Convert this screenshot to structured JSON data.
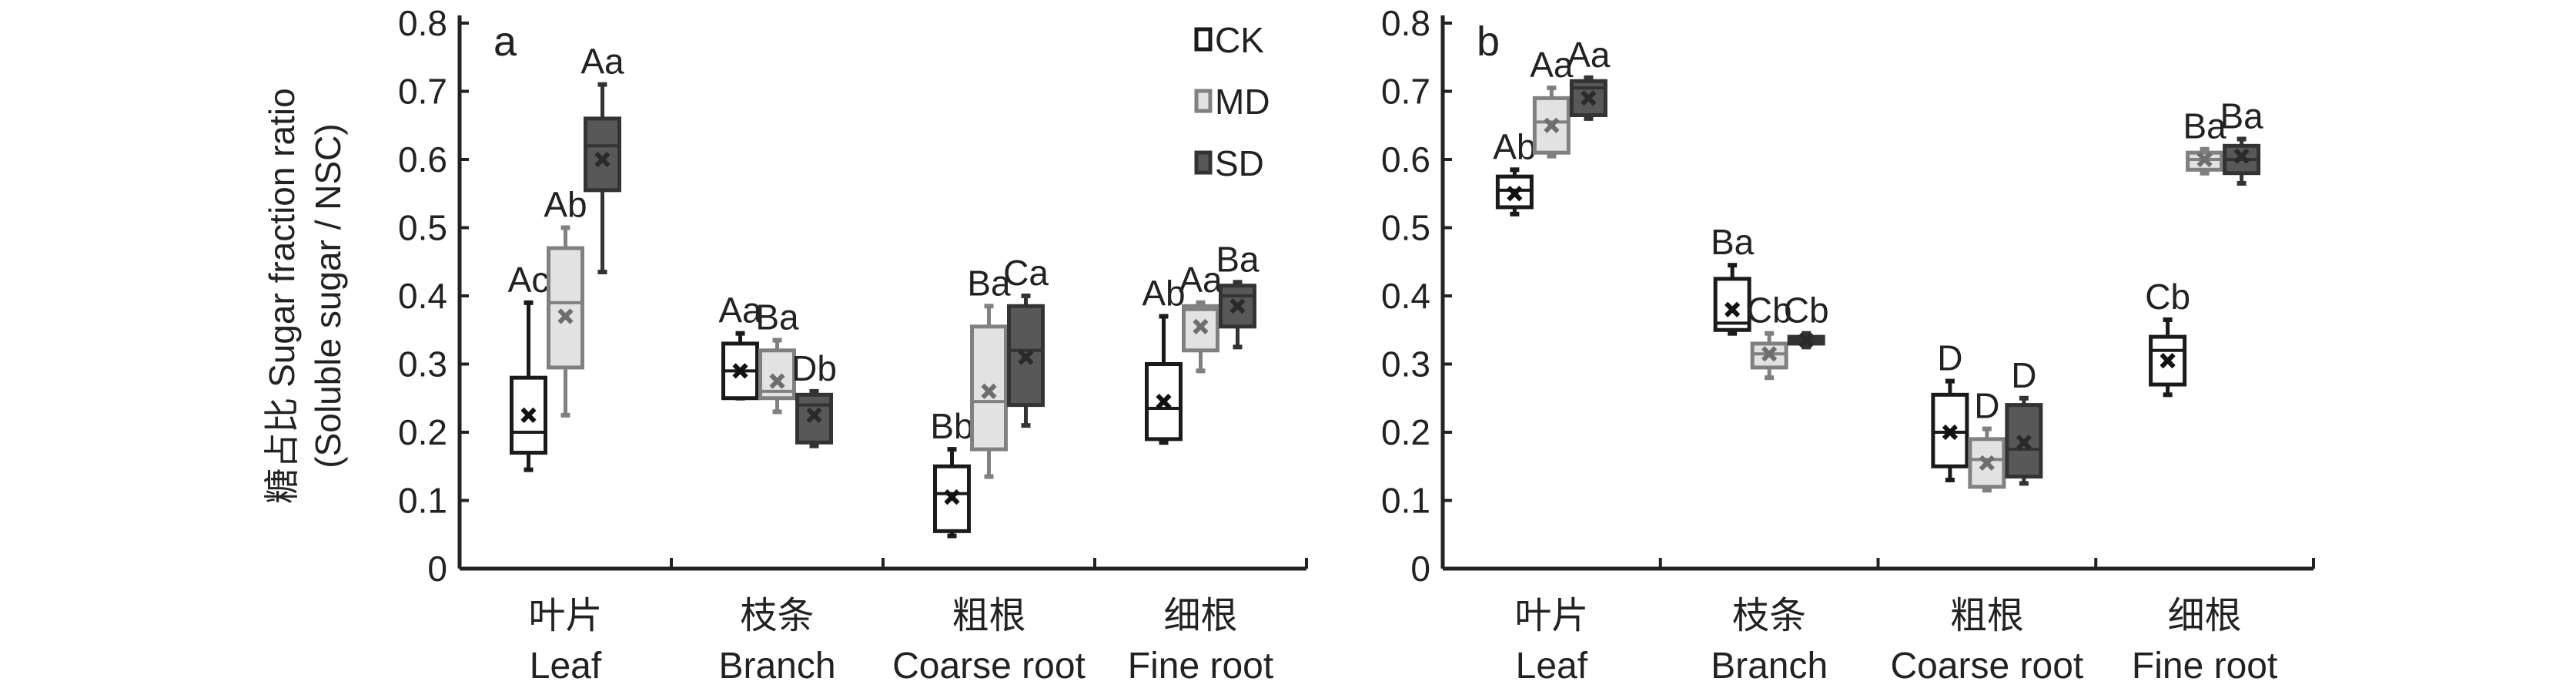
{
  "chart_data": {
    "type": "box",
    "ylabel_line1": "糖占比 Sugar fraction ratio",
    "ylabel_line2": "(Soluble sugar / NSC)",
    "ylim": [
      0,
      0.8
    ],
    "yticks": [
      "0",
      "0.1",
      "0.2",
      "0.3",
      "0.4",
      "0.5",
      "0.6",
      "0.7",
      "0.8"
    ],
    "categories": [
      {
        "zh": "叶片",
        "en": "Leaf"
      },
      {
        "zh": "枝条",
        "en": "Branch"
      },
      {
        "zh": "粗根",
        "en": "Coarse root"
      },
      {
        "zh": "细根",
        "en": "Fine root"
      }
    ],
    "legend": [
      {
        "name": "CK",
        "fill": "#ffffff",
        "stroke": "#1a1a1a"
      },
      {
        "name": "MD",
        "fill": "#e2e2e2",
        "stroke": "#808080"
      },
      {
        "name": "SD",
        "fill": "#585858",
        "stroke": "#333333"
      }
    ],
    "legend_position": "top-right of panel a",
    "panels": [
      {
        "label": "a",
        "boxes": [
          [
            {
              "min": 0.145,
              "q1": 0.17,
              "median": 0.2,
              "q3": 0.28,
              "max": 0.39,
              "mean": 0.225,
              "sig": "Ac"
            },
            {
              "min": 0.225,
              "q1": 0.295,
              "median": 0.39,
              "q3": 0.47,
              "max": 0.5,
              "mean": 0.37,
              "sig": "Ab"
            },
            {
              "min": 0.435,
              "q1": 0.555,
              "median": 0.62,
              "q3": 0.66,
              "max": 0.71,
              "mean": 0.6,
              "sig": "Aa"
            }
          ],
          [
            {
              "min": 0.25,
              "q1": 0.25,
              "median": 0.29,
              "q3": 0.33,
              "max": 0.345,
              "mean": 0.29,
              "sig": "Aa"
            },
            {
              "min": 0.23,
              "q1": 0.25,
              "median": 0.26,
              "q3": 0.32,
              "max": 0.335,
              "mean": 0.275,
              "sig": "Ba"
            },
            {
              "min": 0.18,
              "q1": 0.185,
              "median": 0.24,
              "q3": 0.255,
              "max": 0.26,
              "mean": 0.225,
              "sig": "Db"
            }
          ],
          [
            {
              "min": 0.048,
              "q1": 0.055,
              "median": 0.11,
              "q3": 0.15,
              "max": 0.175,
              "mean": 0.105,
              "sig": "Bb"
            },
            {
              "min": 0.135,
              "q1": 0.175,
              "median": 0.245,
              "q3": 0.355,
              "max": 0.385,
              "mean": 0.26,
              "sig": "Ba"
            },
            {
              "min": 0.21,
              "q1": 0.24,
              "median": 0.32,
              "q3": 0.385,
              "max": 0.4,
              "mean": 0.31,
              "sig": "Ca"
            }
          ],
          [
            {
              "min": 0.185,
              "q1": 0.19,
              "median": 0.235,
              "q3": 0.3,
              "max": 0.37,
              "mean": 0.245,
              "sig": "Ab"
            },
            {
              "min": 0.29,
              "q1": 0.32,
              "median": 0.38,
              "q3": 0.385,
              "max": 0.39,
              "mean": 0.355,
              "sig": "Aa"
            },
            {
              "min": 0.325,
              "q1": 0.355,
              "median": 0.4,
              "q3": 0.415,
              "max": 0.42,
              "mean": 0.385,
              "sig": "Ba"
            }
          ]
        ]
      },
      {
        "label": "b",
        "boxes": [
          [
            {
              "min": 0.52,
              "q1": 0.53,
              "median": 0.555,
              "q3": 0.575,
              "max": 0.585,
              "mean": 0.55,
              "sig": "Ab"
            },
            {
              "min": 0.605,
              "q1": 0.61,
              "median": 0.655,
              "q3": 0.69,
              "max": 0.705,
              "mean": 0.65,
              "sig": "Aa"
            },
            {
              "min": 0.66,
              "q1": 0.665,
              "median": 0.705,
              "q3": 0.715,
              "max": 0.72,
              "mean": 0.69,
              "sig": "Aa"
            }
          ],
          [
            {
              "min": 0.345,
              "q1": 0.35,
              "median": 0.36,
              "q3": 0.425,
              "max": 0.445,
              "mean": 0.38,
              "sig": "Ba"
            },
            {
              "min": 0.28,
              "q1": 0.295,
              "median": 0.315,
              "q3": 0.33,
              "max": 0.345,
              "mean": 0.315,
              "sig": "Cb"
            },
            {
              "min": 0.325,
              "q1": 0.33,
              "median": 0.335,
              "q3": 0.34,
              "max": 0.345,
              "mean": 0.335,
              "sig": "Cb"
            }
          ],
          [
            {
              "min": 0.13,
              "q1": 0.15,
              "median": 0.2,
              "q3": 0.255,
              "max": 0.275,
              "mean": 0.2,
              "sig": "D"
            },
            {
              "min": 0.115,
              "q1": 0.12,
              "median": 0.16,
              "q3": 0.19,
              "max": 0.205,
              "mean": 0.155,
              "sig": "D"
            },
            {
              "min": 0.125,
              "q1": 0.135,
              "median": 0.175,
              "q3": 0.24,
              "max": 0.25,
              "mean": 0.185,
              "sig": "D"
            }
          ],
          [
            {
              "min": 0.255,
              "q1": 0.27,
              "median": 0.32,
              "q3": 0.34,
              "max": 0.365,
              "mean": 0.305,
              "sig": "Cb"
            },
            {
              "min": 0.58,
              "q1": 0.585,
              "median": 0.6,
              "q3": 0.61,
              "max": 0.615,
              "mean": 0.6,
              "sig": "Ba"
            },
            {
              "min": 0.565,
              "q1": 0.58,
              "median": 0.6,
              "q3": 0.62,
              "max": 0.63,
              "mean": 0.605,
              "sig": "Ba"
            }
          ]
        ]
      }
    ]
  }
}
